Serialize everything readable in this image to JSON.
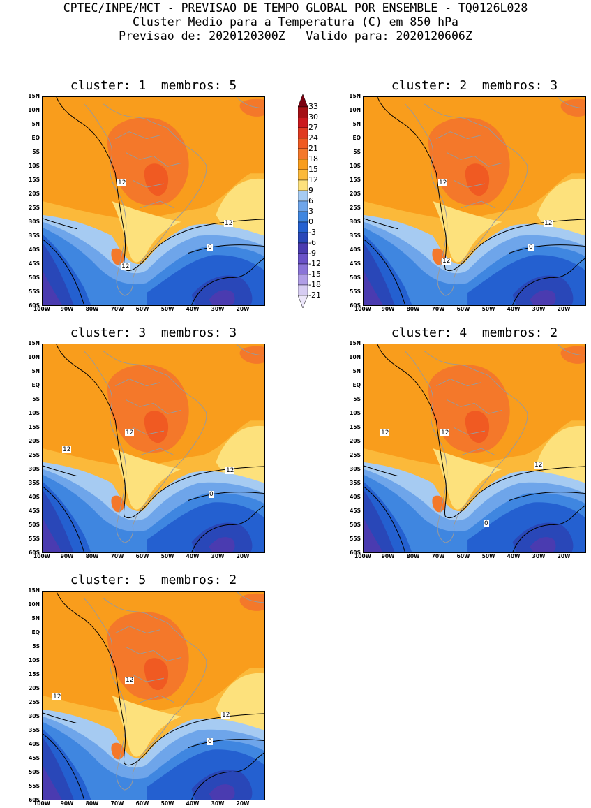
{
  "header": {
    "line1": "CPTEC/INPE/MCT - PREVISAO DE TEMPO GLOBAL POR ENSEMBLE - TQ0126L028",
    "line2": "Cluster Medio para a Temperatura (C) em 850 hPa",
    "line3": "Previsao de: 2020120300Z   Valido para: 2020120606Z"
  },
  "axes": {
    "lat_labels": [
      "15N",
      "10N",
      "5N",
      "EQ",
      "5S",
      "10S",
      "15S",
      "20S",
      "25S",
      "30S",
      "35S",
      "40S",
      "45S",
      "50S",
      "55S",
      "60S"
    ],
    "lon_labels": [
      "100W",
      "90W",
      "80W",
      "70W",
      "60W",
      "50W",
      "40W",
      "30W",
      "20W"
    ]
  },
  "colorbar": {
    "labels": [
      "33",
      "30",
      "27",
      "24",
      "21",
      "18",
      "15",
      "12",
      "9",
      "6",
      "3",
      "0",
      "-3",
      "-6",
      "-9",
      "-12",
      "-15",
      "-18",
      "-21"
    ],
    "colors": [
      "#a50f15",
      "#cb181d",
      "#e03a20",
      "#f05a22",
      "#f4782a",
      "#f99d1c",
      "#fbb93a",
      "#fde17c",
      "#a6cbf2",
      "#6ea5ea",
      "#3f86e0",
      "#2460d0",
      "#2947b8",
      "#4a3bb0",
      "#6a52c8",
      "#8a74d8",
      "#b09ee6",
      "#d6ccf2"
    ]
  },
  "panels": [
    {
      "title": "cluster: 1  membros: 5",
      "contour_labels": [
        "12",
        "12",
        "12",
        "0"
      ]
    },
    {
      "title": "cluster: 2  membros: 3",
      "contour_labels": [
        "12",
        "12",
        "12",
        "0"
      ]
    },
    {
      "title": "cluster: 3  membros: 3",
      "contour_labels": [
        "12",
        "12",
        "12",
        "0"
      ]
    },
    {
      "title": "cluster: 4  membros: 2",
      "contour_labels": [
        "12",
        "12",
        "12",
        "0"
      ]
    },
    {
      "title": "cluster: 5  membros: 2",
      "contour_labels": [
        "12",
        "12",
        "12",
        "0"
      ]
    }
  ]
}
